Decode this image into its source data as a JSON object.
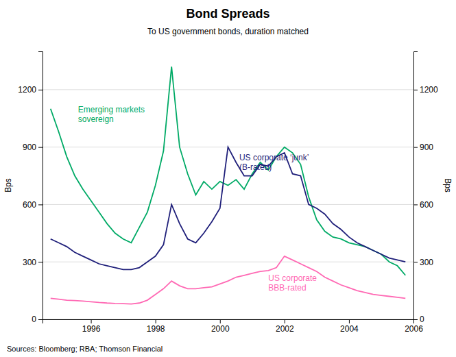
{
  "chart_data": {
    "type": "line",
    "title": "Bond Spreads",
    "subtitle": "To US government bonds, duration matched",
    "source": "Sources: Bloomberg; RBA; Thomson Financial",
    "ylabel": "Bps",
    "y2label": "Bps",
    "xlim": [
      1994.5,
      2006.0
    ],
    "ylim": [
      0,
      1400
    ],
    "y2lim": [
      0,
      1400
    ],
    "xticks": [
      1996,
      1998,
      2000,
      2002,
      2004,
      2006
    ],
    "yticks": [
      0,
      300,
      600,
      900,
      1200
    ],
    "y2ticks": [
      0,
      300,
      600,
      900,
      1200
    ],
    "grid": true,
    "x": [
      1994.75,
      1995.0,
      1995.25,
      1995.5,
      1995.75,
      1996.0,
      1996.25,
      1996.5,
      1996.75,
      1997.0,
      1997.25,
      1997.5,
      1997.75,
      1998.0,
      1998.25,
      1998.5,
      1998.75,
      1999.0,
      1999.25,
      1999.5,
      1999.75,
      2000.0,
      2000.25,
      2000.5,
      2000.75,
      2001.0,
      2001.25,
      2001.5,
      2001.75,
      2002.0,
      2002.25,
      2002.5,
      2002.75,
      2003.0,
      2003.25,
      2003.5,
      2003.75,
      2004.0,
      2004.25,
      2004.5,
      2004.75,
      2005.0,
      2005.25,
      2005.5,
      2005.75
    ],
    "series": [
      {
        "color": "#00AA66",
        "values": [
          1100,
          980,
          850,
          750,
          680,
          620,
          560,
          500,
          450,
          420,
          400,
          480,
          560,
          700,
          880,
          1320,
          900,
          760,
          650,
          720,
          680,
          720,
          700,
          730,
          680,
          760,
          820,
          780,
          850,
          900,
          870,
          810,
          640,
          520,
          460,
          430,
          420,
          400,
          390,
          380,
          360,
          340,
          300,
          280,
          230
        ]
      },
      {
        "color": "#1F1F7A",
        "values": [
          420,
          400,
          380,
          350,
          330,
          310,
          290,
          280,
          270,
          260,
          260,
          270,
          300,
          330,
          390,
          600,
          500,
          420,
          400,
          450,
          510,
          580,
          900,
          820,
          750,
          750,
          810,
          800,
          850,
          870,
          760,
          750,
          600,
          580,
          550,
          500,
          470,
          430,
          400,
          380,
          360,
          340,
          320,
          310,
          300
        ]
      },
      {
        "color": "#FF69B4",
        "values": [
          110,
          105,
          100,
          98,
          95,
          92,
          88,
          85,
          83,
          82,
          80,
          85,
          100,
          130,
          160,
          200,
          175,
          160,
          160,
          165,
          170,
          185,
          200,
          220,
          230,
          240,
          250,
          255,
          270,
          330,
          310,
          290,
          270,
          250,
          220,
          200,
          180,
          165,
          150,
          140,
          130,
          125,
          120,
          115,
          110
        ]
      }
    ],
    "annotations": [
      {
        "text": "Emerging markets\nsovereign",
        "x": 1995.6,
        "y": 1120,
        "color": "#00AA66"
      },
      {
        "text": "US corporate ‘junk’\n(B-rated)",
        "x": 2000.6,
        "y": 870,
        "color": "#1F1F7A"
      },
      {
        "text": "US corporate\nBBB-rated",
        "x": 2001.5,
        "y": 240,
        "color": "#FF69B4"
      }
    ]
  }
}
